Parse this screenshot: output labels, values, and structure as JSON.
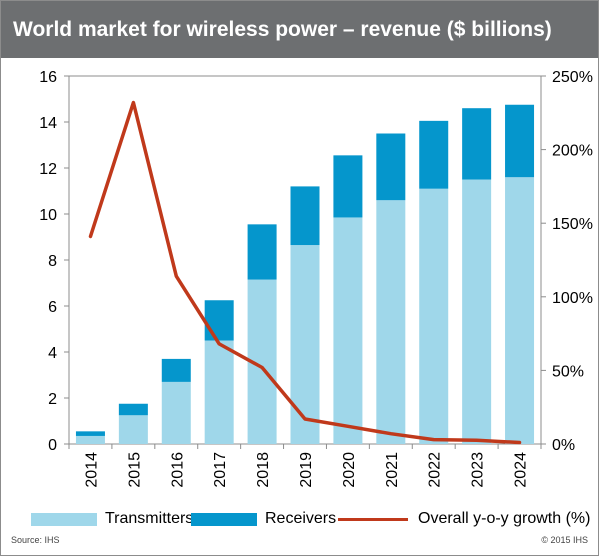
{
  "header": {
    "title": "World market for wireless power – revenue ($ billions)"
  },
  "footer": {
    "source": "Source: IHS",
    "copyright": "© 2015 IHS"
  },
  "colors": {
    "header_bg": "#6d6f71",
    "transmitters": "#9fd7ea",
    "receivers": "#0596cc",
    "growth": "#c0391b"
  },
  "chart_data": {
    "type": "bar",
    "stacked": true,
    "title": "World market for wireless power – revenue ($ billions)",
    "categories": [
      "2014",
      "2015",
      "2016",
      "2017",
      "2018",
      "2019",
      "2020",
      "2021",
      "2022",
      "2023",
      "2024"
    ],
    "series": [
      {
        "name": "Transmitters",
        "axis": "left",
        "values": [
          0.35,
          1.25,
          2.7,
          4.5,
          7.15,
          8.65,
          9.85,
          10.6,
          11.1,
          11.5,
          11.6
        ]
      },
      {
        "name": "Receivers",
        "axis": "left",
        "values": [
          0.2,
          0.5,
          1.0,
          1.75,
          2.4,
          2.55,
          2.7,
          2.9,
          2.95,
          3.1,
          3.15
        ]
      },
      {
        "name": "Overall y-o-y growth (%)",
        "type": "line",
        "axis": "right",
        "values": [
          141,
          232,
          114,
          68,
          52,
          17,
          12,
          7,
          3,
          2.5,
          1
        ]
      }
    ],
    "y_left": {
      "ylim": [
        0,
        16
      ],
      "ticks": [
        "0",
        "2",
        "4",
        "6",
        "8",
        "10",
        "12",
        "14",
        "16"
      ]
    },
    "y_right": {
      "ylim": [
        0,
        250
      ],
      "ticks": [
        "0%",
        "50%",
        "100%",
        "150%",
        "200%",
        "250%"
      ]
    },
    "xlabel": "",
    "ylabel": "",
    "grid": false,
    "legend_position": "bottom"
  }
}
